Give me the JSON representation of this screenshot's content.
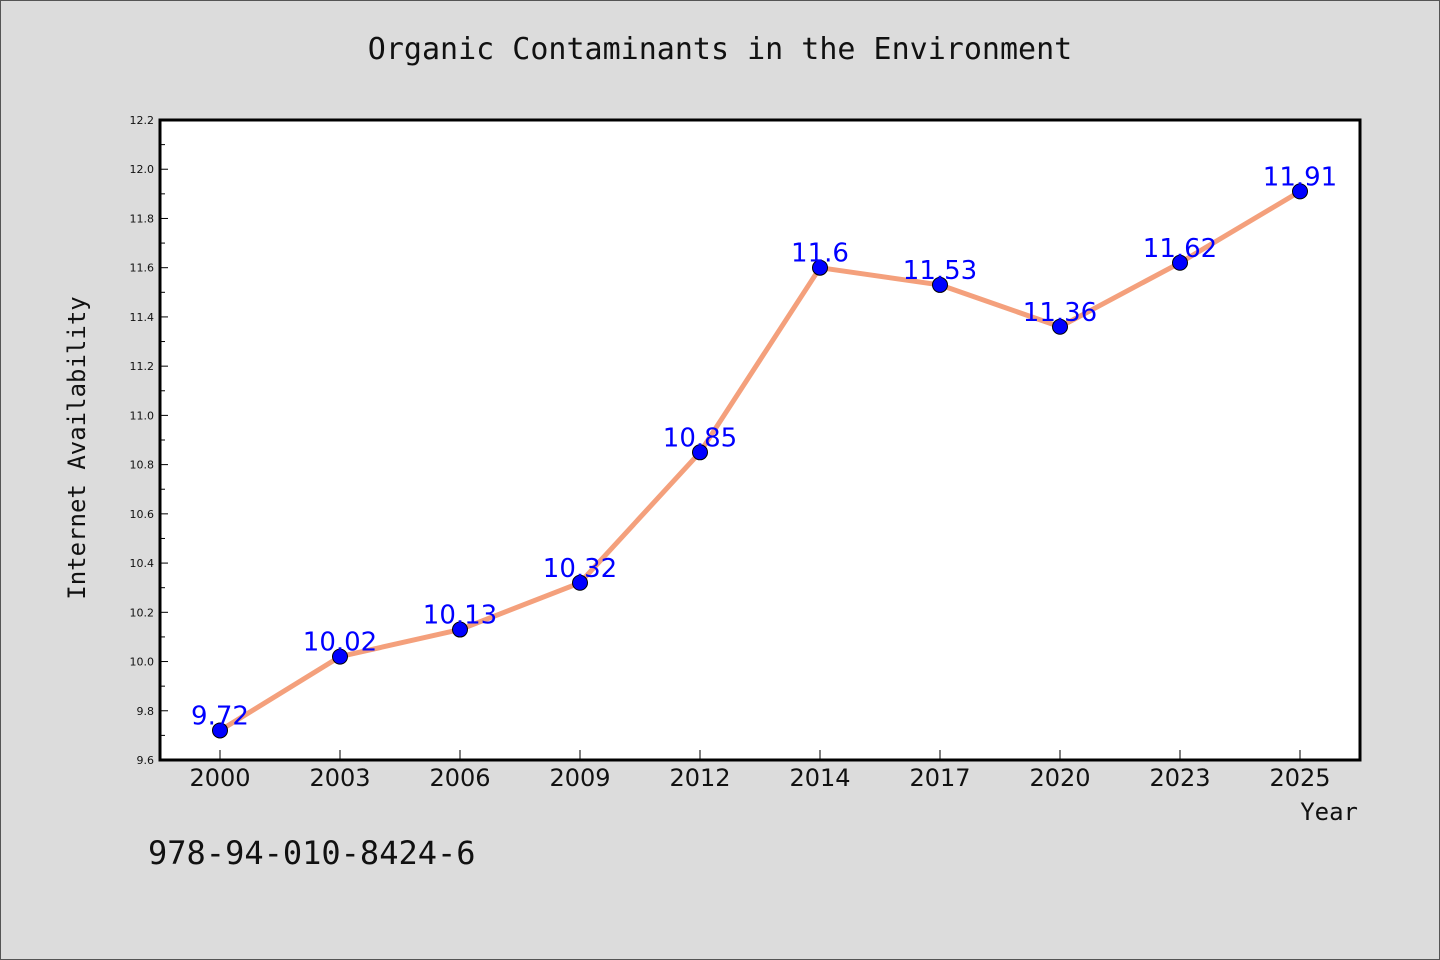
{
  "chart_data": {
    "type": "line",
    "title": "Organic Contaminants in the Environment",
    "xlabel": "Year",
    "ylabel": "Internet Availability",
    "categories": [
      "2000",
      "2003",
      "2006",
      "2009",
      "2012",
      "2014",
      "2017",
      "2020",
      "2023",
      "2025"
    ],
    "series": [
      {
        "values": [
          9.72,
          10.02,
          10.13,
          10.32,
          10.85,
          11.6,
          11.53,
          11.36,
          11.62,
          11.91
        ],
        "data_labels": [
          "9.72",
          "10.02",
          "10.13",
          "10.32",
          "10.85",
          "11.6",
          "11.53",
          "11.36",
          "11.62",
          "11.91"
        ],
        "line_color": "#f4a07c",
        "marker_color": "#0000ff"
      }
    ],
    "ylim": [
      9.6,
      12.2
    ],
    "yticks": [
      "9.6",
      "9.8",
      "10.0",
      "10.2",
      "10.4",
      "10.6",
      "10.8",
      "11.0",
      "11.2",
      "11.4",
      "11.6",
      "11.8",
      "12.0",
      "12.2"
    ],
    "grid": false,
    "legend": "none"
  },
  "footer": {
    "isbn": "978-94-010-8424-6"
  },
  "colors": {
    "background": "#dcdcdc",
    "plot_background": "#ffffff"
  }
}
